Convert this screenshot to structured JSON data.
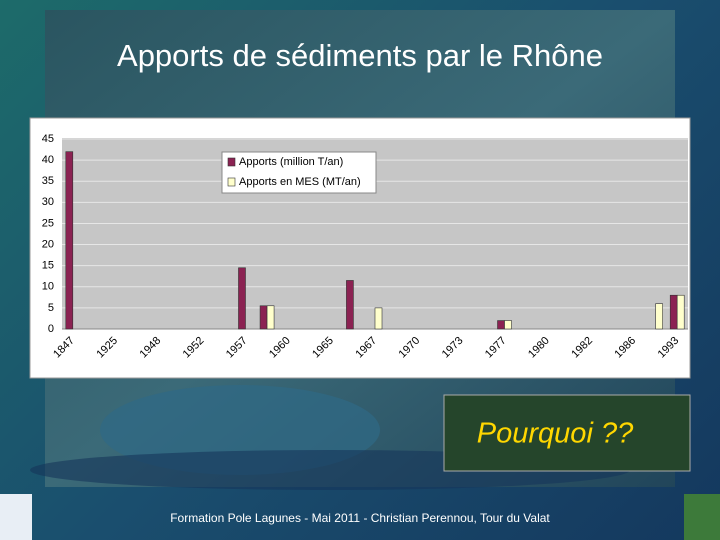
{
  "slide_title": "Apports de sédiments par le Rhône",
  "chart_data": {
    "type": "bar",
    "categories": [
      "1847",
      null,
      "1925",
      null,
      "1948",
      null,
      "1952",
      null,
      "1957",
      null,
      "1960",
      null,
      "1965",
      null,
      "1967",
      null,
      "1970",
      null,
      "1973",
      null,
      "1977",
      null,
      "1980",
      null,
      "1982",
      null,
      "1986",
      null,
      "1993"
    ],
    "series": [
      {
        "name": "Apports (million T/an)",
        "color": "#8b2252",
        "values": [
          42,
          null,
          null,
          null,
          null,
          null,
          null,
          null,
          14.5,
          5.5,
          null,
          null,
          null,
          11.5,
          null,
          null,
          null,
          null,
          null,
          null,
          2,
          null,
          null,
          null,
          null,
          null,
          null,
          null,
          8
        ]
      },
      {
        "name": "Apports en MES (MT/an)",
        "color": "#ffffcc",
        "values": [
          null,
          null,
          null,
          null,
          null,
          null,
          null,
          null,
          null,
          5.5,
          null,
          null,
          null,
          null,
          5,
          null,
          null,
          null,
          null,
          null,
          2,
          null,
          null,
          null,
          null,
          null,
          null,
          6,
          8
        ]
      }
    ],
    "ylim": [
      0,
      45
    ],
    "yticks": [
      0,
      5,
      10,
      15,
      20,
      25,
      30,
      35,
      40,
      45
    ],
    "grid": true,
    "legend": "top"
  },
  "callout": "Pourquoi ??",
  "footer": "Formation Pole Lagunes - Mai 2011  -  Christian Perennou, Tour du Valat"
}
